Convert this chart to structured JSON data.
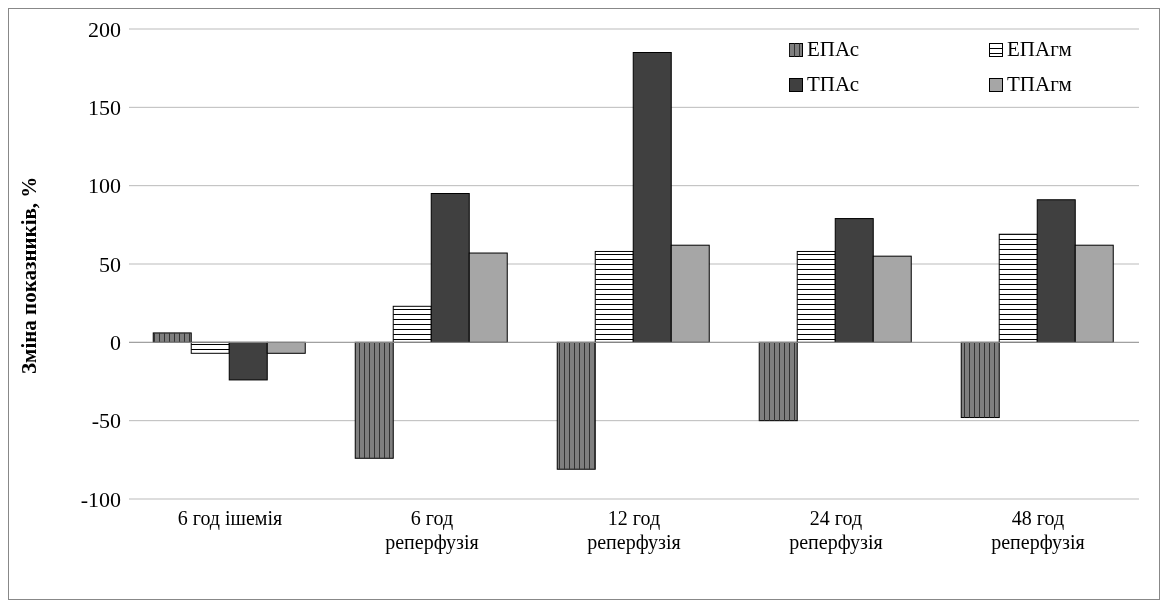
{
  "chart_data": {
    "type": "bar",
    "ylabel": "Зміна показників, %",
    "categories": [
      "6 год ішемія",
      "6 год\nреперфузія",
      "12 год\nреперфузія",
      "24 год\nреперфузія",
      "48 год\nреперфузія"
    ],
    "series": [
      {
        "name": "ЕПАс",
        "color": "#7f7f7f",
        "values": [
          6,
          -74,
          -81,
          -50,
          -48
        ]
      },
      {
        "name": "ЕПАгм",
        "color": "#ffffff",
        "values": [
          -7,
          23,
          58,
          58,
          69
        ]
      },
      {
        "name": "ТПАс",
        "color": "#404040",
        "values": [
          -24,
          95,
          185,
          79,
          91
        ]
      },
      {
        "name": "ТПАгм",
        "color": "#a6a6a6",
        "values": [
          -7,
          57,
          62,
          55,
          62
        ]
      }
    ],
    "ylim": [
      -100,
      200
    ],
    "yticks": [
      -100,
      -50,
      0,
      50,
      100,
      150,
      200
    ],
    "grid": "y",
    "legend": "top right"
  }
}
